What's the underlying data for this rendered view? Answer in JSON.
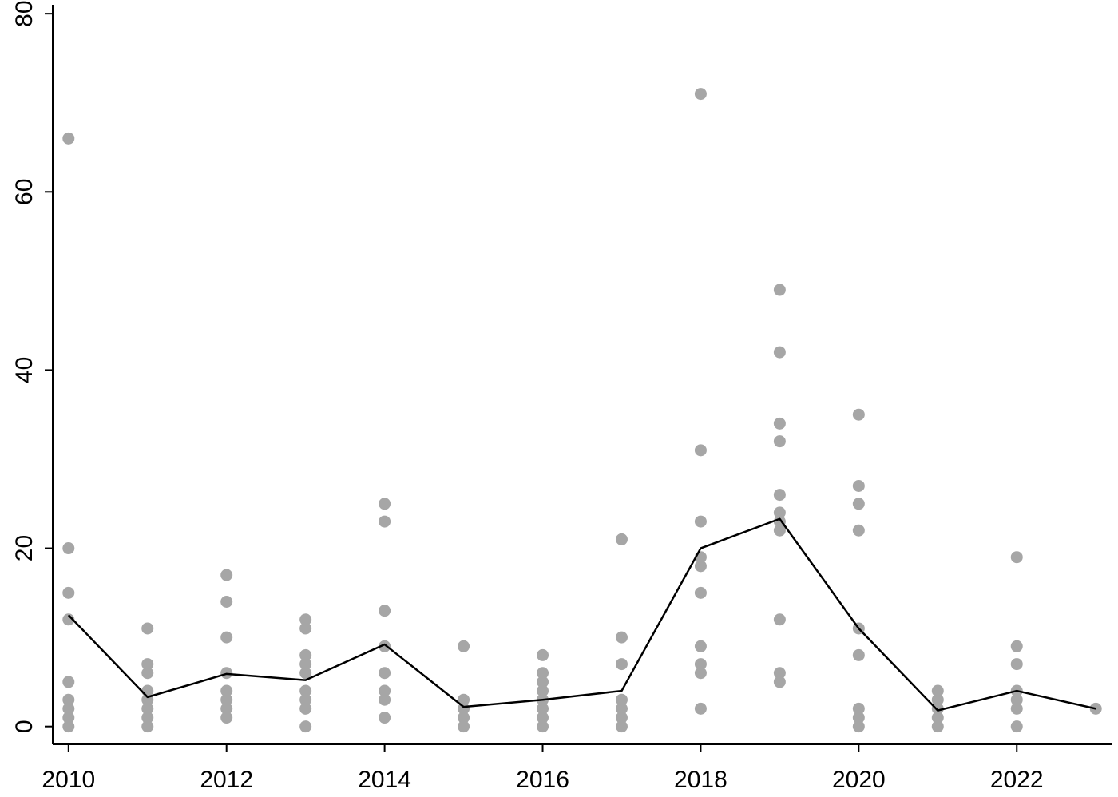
{
  "chart_data": {
    "type": "scatter",
    "title": "",
    "xlabel": "",
    "ylabel": "",
    "xlim": [
      2009.8,
      2023.2
    ],
    "ylim": [
      -2,
      81
    ],
    "x_ticks": [
      2010,
      2012,
      2014,
      2016,
      2018,
      2020,
      2022
    ],
    "y_ticks": [
      0,
      20,
      40,
      60,
      80
    ],
    "x_tick_labels": [
      "2010",
      "2012",
      "2014",
      "2016",
      "2018",
      "2020",
      "2022"
    ],
    "y_tick_labels": [
      "0",
      "20",
      "40",
      "60",
      "80"
    ],
    "grid": false,
    "legend": "none",
    "series": [
      {
        "kind": "points",
        "color": "#a6a6a6",
        "points": [
          [
            2010,
            66
          ],
          [
            2010,
            20
          ],
          [
            2010,
            15
          ],
          [
            2010,
            12
          ],
          [
            2010,
            5
          ],
          [
            2010,
            3
          ],
          [
            2010,
            2
          ],
          [
            2010,
            1
          ],
          [
            2010,
            0
          ],
          [
            2011,
            11
          ],
          [
            2011,
            7
          ],
          [
            2011,
            6
          ],
          [
            2011,
            4
          ],
          [
            2011,
            3
          ],
          [
            2011,
            2
          ],
          [
            2011,
            1
          ],
          [
            2011,
            0
          ],
          [
            2012,
            17
          ],
          [
            2012,
            14
          ],
          [
            2012,
            10
          ],
          [
            2012,
            6
          ],
          [
            2012,
            4
          ],
          [
            2012,
            3
          ],
          [
            2012,
            2
          ],
          [
            2012,
            1
          ],
          [
            2013,
            12
          ],
          [
            2013,
            11
          ],
          [
            2013,
            8
          ],
          [
            2013,
            7
          ],
          [
            2013,
            6
          ],
          [
            2013,
            4
          ],
          [
            2013,
            3
          ],
          [
            2013,
            2
          ],
          [
            2013,
            0
          ],
          [
            2014,
            25
          ],
          [
            2014,
            23
          ],
          [
            2014,
            13
          ],
          [
            2014,
            9
          ],
          [
            2014,
            6
          ],
          [
            2014,
            4
          ],
          [
            2014,
            3
          ],
          [
            2014,
            1
          ],
          [
            2015,
            9
          ],
          [
            2015,
            3
          ],
          [
            2015,
            2
          ],
          [
            2015,
            1
          ],
          [
            2015,
            0
          ],
          [
            2016,
            8
          ],
          [
            2016,
            6
          ],
          [
            2016,
            5
          ],
          [
            2016,
            4
          ],
          [
            2016,
            3
          ],
          [
            2016,
            2
          ],
          [
            2016,
            1
          ],
          [
            2016,
            0
          ],
          [
            2017,
            21
          ],
          [
            2017,
            10
          ],
          [
            2017,
            7
          ],
          [
            2017,
            3
          ],
          [
            2017,
            2
          ],
          [
            2017,
            1
          ],
          [
            2017,
            0
          ],
          [
            2018,
            71
          ],
          [
            2018,
            31
          ],
          [
            2018,
            23
          ],
          [
            2018,
            19
          ],
          [
            2018,
            18
          ],
          [
            2018,
            15
          ],
          [
            2018,
            9
          ],
          [
            2018,
            7
          ],
          [
            2018,
            6
          ],
          [
            2018,
            2
          ],
          [
            2019,
            49
          ],
          [
            2019,
            42
          ],
          [
            2019,
            34
          ],
          [
            2019,
            32
          ],
          [
            2019,
            26
          ],
          [
            2019,
            24
          ],
          [
            2019,
            23
          ],
          [
            2019,
            22
          ],
          [
            2019,
            12
          ],
          [
            2019,
            6
          ],
          [
            2019,
            5
          ],
          [
            2020,
            35
          ],
          [
            2020,
            27
          ],
          [
            2020,
            25
          ],
          [
            2020,
            22
          ],
          [
            2020,
            11
          ],
          [
            2020,
            8
          ],
          [
            2020,
            2
          ],
          [
            2020,
            1
          ],
          [
            2020,
            0
          ],
          [
            2021,
            4
          ],
          [
            2021,
            3
          ],
          [
            2021,
            2
          ],
          [
            2021,
            1
          ],
          [
            2021,
            0
          ],
          [
            2022,
            19
          ],
          [
            2022,
            9
          ],
          [
            2022,
            7
          ],
          [
            2022,
            4
          ],
          [
            2022,
            3
          ],
          [
            2022,
            2
          ],
          [
            2022,
            0
          ],
          [
            2023,
            2
          ]
        ]
      },
      {
        "kind": "line",
        "color": "#000000",
        "x": [
          2010,
          2011,
          2012,
          2013,
          2014,
          2015,
          2016,
          2017,
          2018,
          2019,
          2020,
          2021,
          2022,
          2023
        ],
        "y": [
          12.5,
          3.3,
          5.9,
          5.2,
          9.2,
          2.2,
          3.0,
          4.0,
          20.0,
          23.3,
          11.0,
          1.8,
          4.0,
          2.0
        ]
      }
    ]
  }
}
